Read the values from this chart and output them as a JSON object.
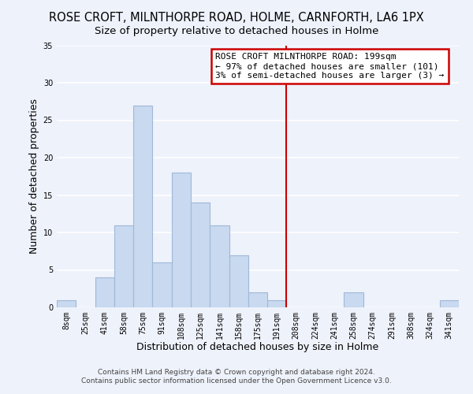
{
  "title": "ROSE CROFT, MILNTHORPE ROAD, HOLME, CARNFORTH, LA6 1PX",
  "subtitle": "Size of property relative to detached houses in Holme",
  "xlabel": "Distribution of detached houses by size in Holme",
  "ylabel": "Number of detached properties",
  "bar_labels": [
    "8sqm",
    "25sqm",
    "41sqm",
    "58sqm",
    "75sqm",
    "91sqm",
    "108sqm",
    "125sqm",
    "141sqm",
    "158sqm",
    "175sqm",
    "191sqm",
    "208sqm",
    "224sqm",
    "241sqm",
    "258sqm",
    "274sqm",
    "291sqm",
    "308sqm",
    "324sqm",
    "341sqm"
  ],
  "bar_values": [
    1,
    0,
    4,
    11,
    27,
    6,
    18,
    14,
    11,
    7,
    2,
    1,
    0,
    0,
    0,
    2,
    0,
    0,
    0,
    0,
    1
  ],
  "bar_color": "#c8d9f0",
  "bar_edge_color": "#a0b8d8",
  "vline_x": 11.5,
  "vline_color": "#cc0000",
  "ylim": [
    0,
    35
  ],
  "yticks": [
    0,
    5,
    10,
    15,
    20,
    25,
    30,
    35
  ],
  "annotation_title": "ROSE CROFT MILNTHORPE ROAD: 199sqm",
  "annotation_line1": "← 97% of detached houses are smaller (101)",
  "annotation_line2": "3% of semi-detached houses are larger (3) →",
  "footer1": "Contains HM Land Registry data © Crown copyright and database right 2024.",
  "footer2": "Contains public sector information licensed under the Open Government Licence v3.0.",
  "background_color": "#eef2fb",
  "grid_color": "#ffffff",
  "title_fontsize": 10.5,
  "subtitle_fontsize": 9.5,
  "axis_label_fontsize": 9,
  "tick_fontsize": 7,
  "annotation_fontsize": 8,
  "footer_fontsize": 6.5
}
